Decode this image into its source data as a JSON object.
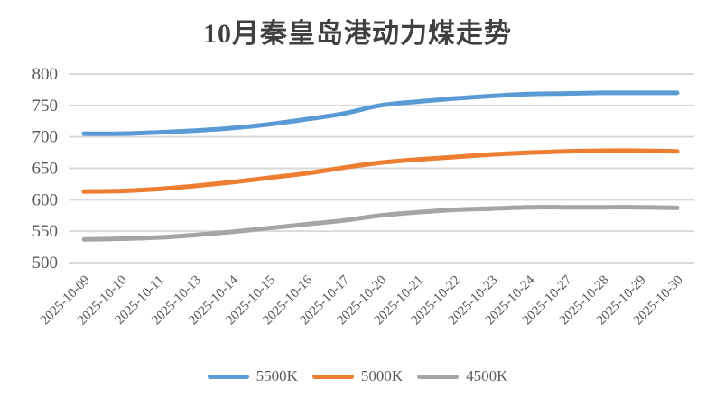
{
  "chart_data": {
    "type": "line",
    "title": "10月秦皇岛港动力煤走势",
    "categories": [
      "2025-10-09",
      "2025-10-10",
      "2025-10-11",
      "2025-10-13",
      "2025-10-14",
      "2025-10-15",
      "2025-10-16",
      "2025-10-17",
      "2025-10-20",
      "2025-10-21",
      "2025-10-22",
      "2025-10-23",
      "2025-10-24",
      "2025-10-27",
      "2025-10-28",
      "2025-10-29",
      "2025-10-30"
    ],
    "series": [
      {
        "name": "5500K",
        "color": "#5B9BD5",
        "values": [
          705,
          705,
          707,
          710,
          714,
          720,
          728,
          737,
          750,
          756,
          761,
          765,
          768,
          769,
          770,
          770,
          770
        ]
      },
      {
        "name": "5000K",
        "color": "#ED7D31",
        "values": [
          613,
          614,
          617,
          622,
          628,
          635,
          642,
          651,
          659,
          664,
          668,
          672,
          675,
          677,
          678,
          678,
          677
        ]
      },
      {
        "name": "4500K",
        "color": "#A5A5A5",
        "values": [
          537,
          538,
          540,
          544,
          549,
          555,
          561,
          567,
          575,
          580,
          584,
          586,
          588,
          588,
          588,
          588,
          587
        ]
      }
    ],
    "xlabel": "",
    "ylabel": "",
    "ylim": [
      500,
      800
    ],
    "ytick_step": 50,
    "ytick_labels": [
      "800",
      "750",
      "700",
      "650",
      "600",
      "550",
      "500"
    ],
    "grid": "horizontal-only",
    "smooth_lines": true,
    "legend_position": "bottom-center",
    "colors": {
      "background": "#FFFFFF",
      "gridline": "#D9D9D9",
      "title_text": "#404040",
      "axis_text": "#595959"
    }
  }
}
